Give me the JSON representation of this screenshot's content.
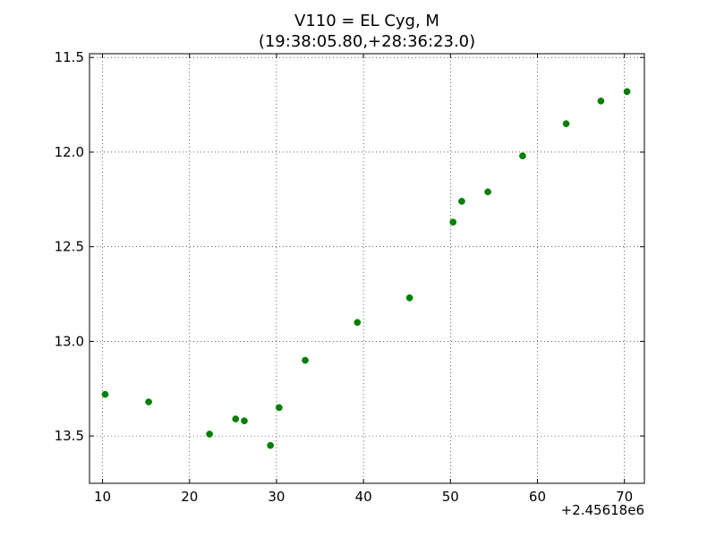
{
  "chart_data": {
    "type": "scatter",
    "title": "V110 = EL Cyg, M",
    "subtitle": "(19:38:05.80,+28:36:23.0)",
    "xlabel": "",
    "ylabel": "",
    "x_offset_label": "+2.45618e6",
    "xlim": [
      8.5,
      72.3
    ],
    "ylim": [
      13.75,
      11.48
    ],
    "y_inverted": true,
    "grid": true,
    "x_ticks": [
      10,
      20,
      30,
      40,
      50,
      60,
      70
    ],
    "x_tick_labels": [
      "10",
      "20",
      "30",
      "40",
      "50",
      "60",
      "70"
    ],
    "y_ticks": [
      11.5,
      12.0,
      12.5,
      13.0,
      13.5
    ],
    "y_tick_labels": [
      "11.5",
      "12.0",
      "12.5",
      "13.0",
      "13.5"
    ],
    "marker_color": "#007f00",
    "series": [
      {
        "points": [
          {
            "x": 10.3,
            "y": 13.28
          },
          {
            "x": 15.3,
            "y": 13.32
          },
          {
            "x": 22.3,
            "y": 13.49
          },
          {
            "x": 25.3,
            "y": 13.41
          },
          {
            "x": 26.3,
            "y": 13.42
          },
          {
            "x": 29.3,
            "y": 13.55
          },
          {
            "x": 30.3,
            "y": 13.35
          },
          {
            "x": 33.3,
            "y": 13.1
          },
          {
            "x": 39.3,
            "y": 12.9
          },
          {
            "x": 45.3,
            "y": 12.77
          },
          {
            "x": 50.3,
            "y": 12.37
          },
          {
            "x": 51.3,
            "y": 12.26
          },
          {
            "x": 54.3,
            "y": 12.21
          },
          {
            "x": 58.3,
            "y": 12.02
          },
          {
            "x": 63.3,
            "y": 11.85
          },
          {
            "x": 67.3,
            "y": 11.73
          },
          {
            "x": 70.3,
            "y": 11.68
          }
        ]
      }
    ]
  }
}
